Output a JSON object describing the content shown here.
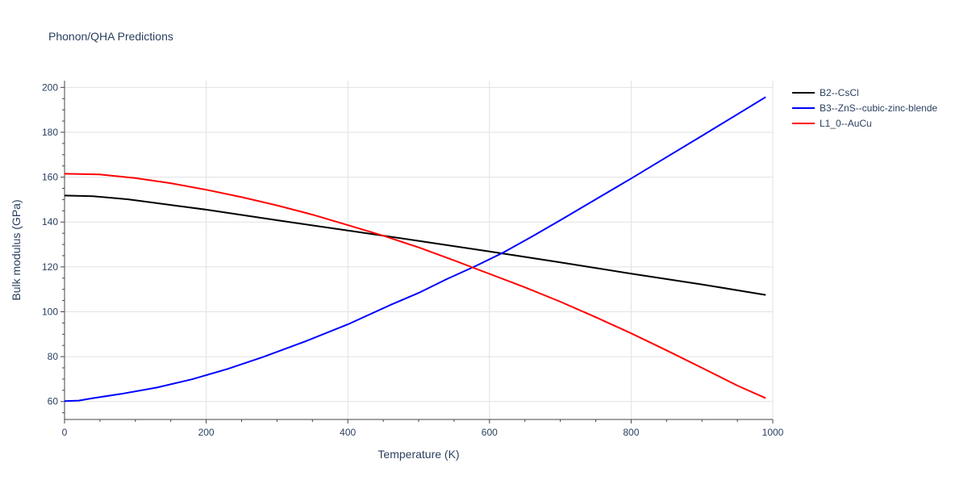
{
  "chart_data": {
    "type": "line",
    "title": "Phonon/QHA Predictions",
    "xlabel": "Temperature (K)",
    "ylabel": "Bulk modulus (GPa)",
    "xlim": [
      0,
      1000
    ],
    "ylim": [
      52,
      203
    ],
    "xticks": [
      0,
      200,
      400,
      600,
      800,
      1000
    ],
    "yticks": [
      60,
      80,
      100,
      120,
      140,
      160,
      180,
      200
    ],
    "xtick_labels": [
      "0",
      "200",
      "400",
      "600",
      "800",
      "1000"
    ],
    "ytick_labels": [
      "60",
      "80",
      "100",
      "120",
      "140",
      "160",
      "180",
      "200"
    ],
    "grid": true,
    "legend_position": "top-right",
    "series": [
      {
        "name": "B2--CsCl",
        "color": "#000000",
        "x": [
          0,
          40,
          90,
          150,
          200,
          300,
          400,
          500,
          600,
          700,
          800,
          900,
          990
        ],
        "y": [
          151.8,
          151.5,
          150.1,
          147.6,
          145.5,
          140.8,
          136.2,
          131.6,
          126.9,
          122.0,
          117.0,
          112.2,
          107.5
        ]
      },
      {
        "name": "B3--ZnS--cubic-zinc-blende",
        "color": "#0000ff",
        "x": [
          0,
          20,
          40,
          80,
          130,
          180,
          230,
          280,
          340,
          400,
          460,
          500,
          540,
          580,
          620,
          660,
          700,
          750,
          800,
          850,
          900,
          950,
          990
        ],
        "y": [
          60.2,
          60.4,
          61.5,
          63.4,
          66.2,
          69.9,
          74.5,
          79.8,
          86.8,
          94.4,
          103.0,
          108.4,
          114.6,
          120.3,
          126.5,
          133.5,
          140.8,
          150.1,
          159.4,
          168.9,
          178.4,
          188.0,
          195.7
        ]
      },
      {
        "name": "L1_0--AuCu",
        "color": "#ff0000",
        "x": [
          0,
          50,
          100,
          150,
          200,
          250,
          300,
          350,
          400,
          450,
          500,
          550,
          600,
          650,
          700,
          750,
          800,
          850,
          900,
          950,
          990
        ],
        "y": [
          161.5,
          161.2,
          159.6,
          157.3,
          154.4,
          151.1,
          147.4,
          143.3,
          138.6,
          133.9,
          128.7,
          122.9,
          116.9,
          110.9,
          104.5,
          97.6,
          90.4,
          82.8,
          75.0,
          67.1,
          61.5
        ]
      }
    ]
  }
}
